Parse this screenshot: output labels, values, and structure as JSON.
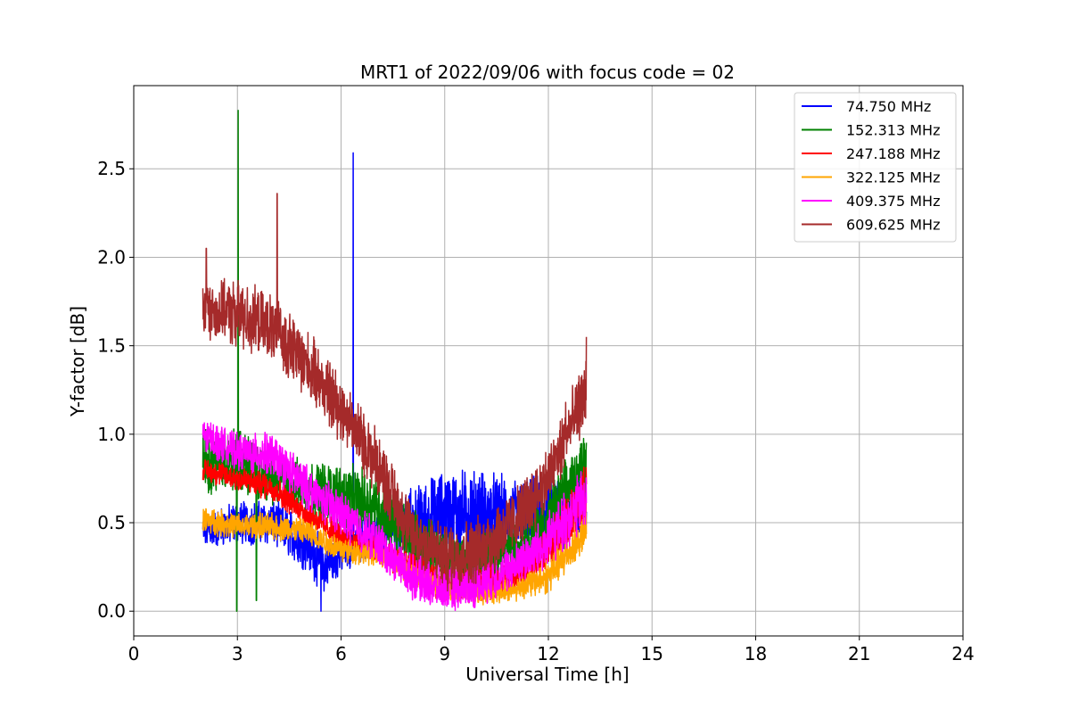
{
  "chart_data": {
    "type": "line",
    "title": "MRT1 of 2022/09/06 with focus code = 02",
    "xlabel": "Universal Time [h]",
    "ylabel": "Y-factor [dB]",
    "xlim": [
      0,
      24
    ],
    "ylim": [
      -0.14,
      2.97
    ],
    "xticks": [
      0,
      3,
      6,
      9,
      12,
      15,
      18,
      21,
      24
    ],
    "xtick_labels": [
      "0",
      "3",
      "6",
      "9",
      "12",
      "15",
      "18",
      "21",
      "24"
    ],
    "yticks": [
      0.0,
      0.5,
      1.0,
      1.5,
      2.0,
      2.5
    ],
    "ytick_labels": [
      "0.0",
      "0.5",
      "1.0",
      "1.5",
      "2.0",
      "2.5"
    ],
    "grid": true,
    "legend_position": "top-right",
    "x_range_of_data": [
      2.0,
      13.1
    ],
    "series": [
      {
        "name": " 74.750 MHz",
        "color": "#0000ff",
        "x": [
          2.0,
          3.0,
          4.0,
          5.0,
          5.5,
          6.0,
          6.5,
          7.0,
          8.0,
          9.0,
          10.0,
          11.0,
          12.0,
          13.1
        ],
        "mean": [
          0.45,
          0.5,
          0.5,
          0.38,
          0.25,
          0.33,
          0.4,
          0.45,
          0.5,
          0.55,
          0.55,
          0.52,
          0.55,
          0.6
        ],
        "noise": [
          0.08,
          0.1,
          0.1,
          0.12,
          0.12,
          0.1,
          0.1,
          0.1,
          0.15,
          0.2,
          0.2,
          0.18,
          0.18,
          0.15
        ],
        "spikes": [
          [
            6.35,
            2.59
          ],
          [
            5.42,
            0.0
          ]
        ],
        "min": 0.0,
        "max": 2.59
      },
      {
        "name": "152.313 MHz",
        "color": "#008000",
        "x": [
          2.0,
          3.0,
          4.0,
          5.0,
          6.0,
          7.0,
          8.0,
          9.0,
          10.0,
          11.0,
          12.0,
          13.1
        ],
        "mean": [
          0.85,
          0.85,
          0.75,
          0.7,
          0.65,
          0.6,
          0.4,
          0.3,
          0.3,
          0.35,
          0.5,
          0.85
        ],
        "noise": [
          0.15,
          0.15,
          0.12,
          0.12,
          0.15,
          0.15,
          0.15,
          0.12,
          0.12,
          0.12,
          0.15,
          0.15
        ],
        "spikes": [
          [
            3.02,
            2.83
          ],
          [
            2.98,
            0.0
          ],
          [
            3.55,
            0.06
          ]
        ],
        "min": 0.0,
        "max": 2.83
      },
      {
        "name": "247.188 MHz",
        "color": "#ff0000",
        "x": [
          2.0,
          3.0,
          4.0,
          5.0,
          6.0,
          7.0,
          8.0,
          9.0,
          10.0,
          11.0,
          12.0,
          13.1
        ],
        "mean": [
          0.8,
          0.75,
          0.7,
          0.55,
          0.42,
          0.35,
          0.25,
          0.15,
          0.15,
          0.2,
          0.35,
          0.65
        ],
        "noise": [
          0.05,
          0.06,
          0.06,
          0.06,
          0.06,
          0.06,
          0.07,
          0.08,
          0.08,
          0.08,
          0.1,
          0.15
        ],
        "spikes": [],
        "min": 0.0,
        "max": 0.9
      },
      {
        "name": "322.125 MHz",
        "color": "#ffa500",
        "x": [
          2.0,
          3.0,
          4.0,
          5.0,
          6.0,
          7.0,
          8.0,
          9.0,
          10.0,
          11.0,
          12.0,
          13.1
        ],
        "mean": [
          0.52,
          0.48,
          0.48,
          0.45,
          0.35,
          0.32,
          0.22,
          0.12,
          0.1,
          0.12,
          0.2,
          0.45
        ],
        "noise": [
          0.06,
          0.06,
          0.06,
          0.06,
          0.06,
          0.05,
          0.05,
          0.05,
          0.05,
          0.05,
          0.08,
          0.1
        ],
        "spikes": [],
        "min": 0.0,
        "max": 0.65
      },
      {
        "name": "409.375 MHz",
        "color": "#ff00ff",
        "x": [
          2.0,
          3.0,
          4.0,
          5.0,
          6.0,
          7.0,
          8.0,
          9.0,
          10.0,
          11.0,
          12.0,
          13.1
        ],
        "mean": [
          1.0,
          0.9,
          0.88,
          0.7,
          0.55,
          0.4,
          0.2,
          0.12,
          0.15,
          0.25,
          0.4,
          0.65
        ],
        "noise": [
          0.08,
          0.08,
          0.1,
          0.1,
          0.1,
          0.1,
          0.1,
          0.1,
          0.1,
          0.1,
          0.12,
          0.15
        ],
        "spikes": [],
        "min": 0.0,
        "max": 1.15
      },
      {
        "name": "609.625 MHz",
        "color": "#a52a2a",
        "x": [
          2.0,
          3.0,
          4.0,
          5.0,
          6.0,
          7.0,
          8.0,
          9.0,
          10.0,
          11.0,
          12.0,
          13.1
        ],
        "mean": [
          1.7,
          1.68,
          1.6,
          1.4,
          1.15,
          0.85,
          0.45,
          0.3,
          0.35,
          0.5,
          0.75,
          1.25
        ],
        "noise": [
          0.12,
          0.15,
          0.15,
          0.15,
          0.15,
          0.15,
          0.15,
          0.15,
          0.15,
          0.15,
          0.15,
          0.15
        ],
        "spikes": [
          [
            4.15,
            2.36
          ],
          [
            2.1,
            2.05
          ],
          [
            12.5,
            1.18
          ],
          [
            13.1,
            1.55
          ]
        ],
        "min": 0.0,
        "max": 2.36
      }
    ]
  }
}
